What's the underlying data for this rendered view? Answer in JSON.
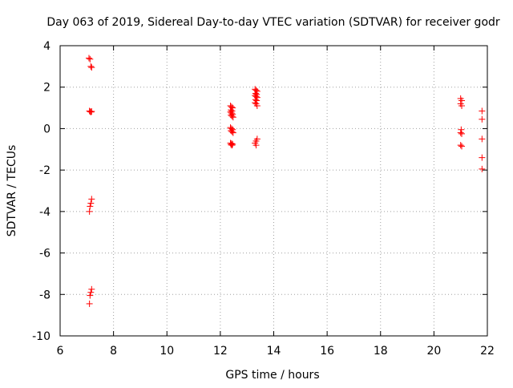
{
  "chart_data": {
    "type": "scatter",
    "title": "Day 063 of 2019, Sidereal Day-to-day VTEC variation (SDTVAR) for receiver godr",
    "xlabel": "GPS time / hours",
    "ylabel": "SDTVAR / TECUs",
    "xlim": [
      6,
      22
    ],
    "ylim": [
      -10,
      4
    ],
    "xticks": [
      6,
      8,
      10,
      12,
      14,
      16,
      18,
      20,
      22
    ],
    "yticks": [
      -10,
      -8,
      -6,
      -4,
      -2,
      0,
      2,
      4
    ],
    "xtick_labels": [
      "6",
      "8",
      "10",
      "12",
      "14",
      "16",
      "18",
      "20",
      "22"
    ],
    "ytick_labels": [
      "-10",
      "-8",
      "-6",
      "-4",
      "-2",
      "0",
      "2",
      "4"
    ],
    "grid": true,
    "legend": "none",
    "marker": "plus",
    "color": "#ff0000",
    "series": [
      {
        "points": [
          [
            7.08,
            3.4
          ],
          [
            7.12,
            3.35
          ],
          [
            7.15,
            3.0
          ],
          [
            7.18,
            2.95
          ],
          [
            7.1,
            0.85
          ],
          [
            7.13,
            0.82
          ],
          [
            7.16,
            0.8
          ],
          [
            7.18,
            0.83
          ],
          [
            7.18,
            -3.4
          ],
          [
            7.15,
            -3.6
          ],
          [
            7.12,
            -3.75
          ],
          [
            7.1,
            -4.0
          ],
          [
            7.18,
            -7.75
          ],
          [
            7.15,
            -7.9
          ],
          [
            7.12,
            -8.05
          ],
          [
            7.1,
            -8.45
          ],
          [
            12.38,
            1.1
          ],
          [
            12.42,
            1.05
          ],
          [
            12.46,
            1.0
          ],
          [
            12.4,
            0.9
          ],
          [
            12.44,
            0.85
          ],
          [
            12.38,
            0.8
          ],
          [
            12.42,
            0.75
          ],
          [
            12.46,
            0.7
          ],
          [
            12.4,
            0.65
          ],
          [
            12.44,
            0.6
          ],
          [
            12.48,
            0.55
          ],
          [
            12.38,
            0.05
          ],
          [
            12.42,
            0.0
          ],
          [
            12.46,
            -0.05
          ],
          [
            12.4,
            -0.1
          ],
          [
            12.44,
            -0.15
          ],
          [
            12.48,
            -0.2
          ],
          [
            12.38,
            -0.7
          ],
          [
            12.42,
            -0.72
          ],
          [
            12.46,
            -0.75
          ],
          [
            12.4,
            -0.78
          ],
          [
            12.44,
            -0.8
          ],
          [
            13.3,
            1.9
          ],
          [
            13.34,
            1.85
          ],
          [
            13.38,
            1.8
          ],
          [
            13.32,
            1.7
          ],
          [
            13.36,
            1.65
          ],
          [
            13.3,
            1.6
          ],
          [
            13.34,
            1.55
          ],
          [
            13.38,
            1.5
          ],
          [
            13.32,
            1.4
          ],
          [
            13.36,
            1.35
          ],
          [
            13.3,
            1.25
          ],
          [
            13.34,
            1.2
          ],
          [
            13.38,
            1.1
          ],
          [
            13.38,
            -0.5
          ],
          [
            13.34,
            -0.6
          ],
          [
            13.3,
            -0.7
          ],
          [
            13.34,
            -0.8
          ],
          [
            21.0,
            1.45
          ],
          [
            21.04,
            1.35
          ],
          [
            21.0,
            1.2
          ],
          [
            21.04,
            1.1
          ],
          [
            21.02,
            -0.05
          ],
          [
            21.0,
            -0.2
          ],
          [
            21.04,
            -0.25
          ],
          [
            21.0,
            -0.8
          ],
          [
            21.04,
            -0.85
          ],
          [
            21.8,
            0.85
          ],
          [
            21.8,
            0.45
          ],
          [
            21.8,
            -0.5
          ],
          [
            21.8,
            -1.4
          ],
          [
            21.8,
            -1.95
          ]
        ]
      }
    ]
  }
}
